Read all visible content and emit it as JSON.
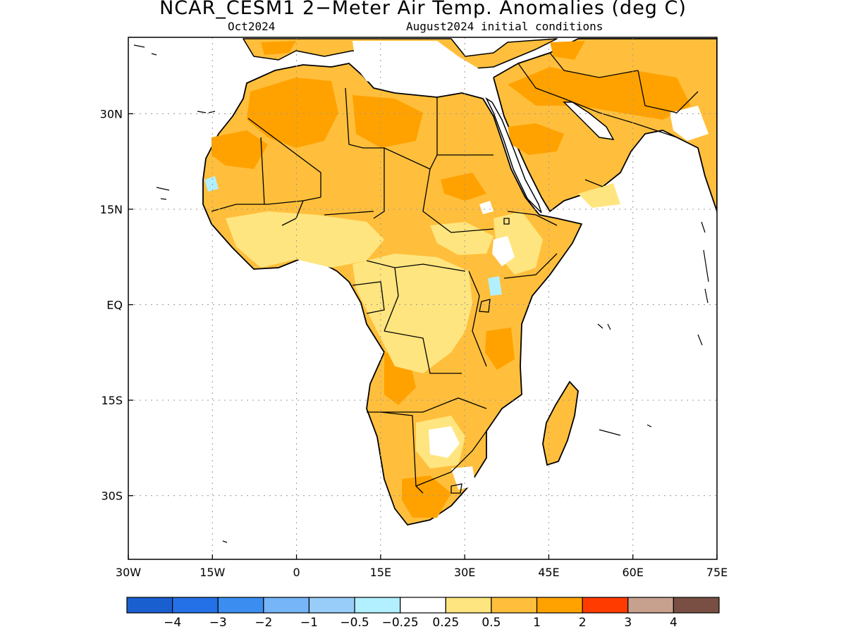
{
  "title": "NCAR_CESM1 2−Meter Air Temp. Anomalies (deg C)",
  "subtitle_left": "Oct2024",
  "subtitle_right": "August2024 initial conditions",
  "map": {
    "lon_range": [
      -30,
      75
    ],
    "lat_range": [
      -40,
      42
    ],
    "x_ticks": [
      {
        "lon": -30,
        "label": "30W"
      },
      {
        "lon": -15,
        "label": "15W"
      },
      {
        "lon": 0,
        "label": "0"
      },
      {
        "lon": 15,
        "label": "15E"
      },
      {
        "lon": 30,
        "label": "30E"
      },
      {
        "lon": 45,
        "label": "45E"
      },
      {
        "lon": 60,
        "label": "60E"
      },
      {
        "lon": 75,
        "label": "75E"
      }
    ],
    "y_ticks": [
      {
        "lat": 30,
        "label": "30N"
      },
      {
        "lat": 15,
        "label": "15N"
      },
      {
        "lat": 0,
        "label": "EQ"
      },
      {
        "lat": -15,
        "label": "15S"
      },
      {
        "lat": -30,
        "label": "30S"
      }
    ],
    "grid": "dotted"
  },
  "colorbar": {
    "colors": [
      "#1a5fcf",
      "#2470e6",
      "#3b8ef0",
      "#76b5f7",
      "#99cdf9",
      "#b2efff",
      "#ffffff",
      "#ffe57f",
      "#ffbf3c",
      "#ffa200",
      "#ff3b00",
      "#c7a08e",
      "#7a4f43"
    ],
    "labels": [
      "−4",
      "−3",
      "−2",
      "−1",
      "−0.5",
      "−0.25",
      "0.25",
      "0.5",
      "1",
      "2",
      "3",
      "4"
    ]
  }
}
